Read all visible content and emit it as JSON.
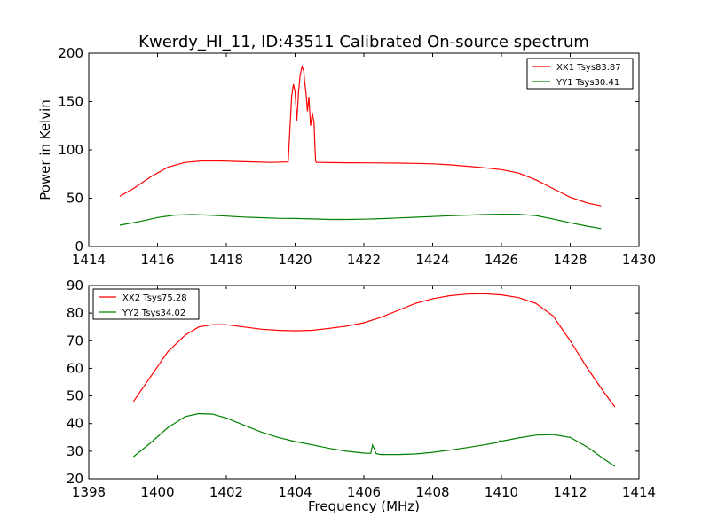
{
  "figure": {
    "title": "Kwerdy_HI_11, ID:43511 Calibrated On-source spectrum",
    "colors": {
      "red": "#ff0000",
      "green": "#008000"
    }
  },
  "chart_data": [
    {
      "type": "line",
      "title": "Kwerdy_HI_11, ID:43511 Calibrated On-source spectrum",
      "xlabel": "",
      "ylabel": "Power in Kelvin",
      "xlim": [
        1414,
        1430
      ],
      "ylim": [
        0,
        200
      ],
      "xticks": [
        1414,
        1416,
        1418,
        1420,
        1422,
        1424,
        1426,
        1428,
        1430
      ],
      "yticks": [
        0,
        50,
        100,
        150,
        200
      ],
      "legend": "upper-right",
      "grid": false,
      "series": [
        {
          "name": "XX1 Tsys83.87",
          "color": "#ff0000",
          "x": [
            1414.9,
            1415.3,
            1415.8,
            1416.3,
            1416.8,
            1417.3,
            1417.8,
            1418.3,
            1418.8,
            1419.3,
            1419.8,
            1419.9,
            1419.95,
            1420.0,
            1420.05,
            1420.1,
            1420.15,
            1420.2,
            1420.25,
            1420.28,
            1420.32,
            1420.36,
            1420.4,
            1420.45,
            1420.5,
            1420.55,
            1420.58,
            1420.6,
            1420.62,
            1420.7,
            1421.0,
            1421.5,
            1422.0,
            1422.5,
            1423.0,
            1423.5,
            1424.0,
            1424.5,
            1425.0,
            1425.5,
            1426.0,
            1426.5,
            1427.0,
            1427.5,
            1428.0,
            1428.5,
            1428.9
          ],
          "y": [
            52,
            60,
            72,
            82,
            87,
            88.5,
            88.5,
            88,
            87.5,
            87,
            87.5,
            155,
            168,
            160,
            130,
            160,
            178,
            186,
            182,
            170,
            158,
            140,
            155,
            125,
            138,
            128,
            100,
            88,
            87,
            87,
            86.8,
            86.6,
            86.5,
            86.4,
            86.2,
            86,
            85.5,
            84.5,
            83,
            81.5,
            79.5,
            76,
            69,
            60,
            51,
            45,
            42
          ]
        },
        {
          "name": "YY1 Tsys30.41",
          "color": "#008000",
          "x": [
            1414.9,
            1415.5,
            1416.0,
            1416.5,
            1417.0,
            1417.5,
            1418.0,
            1418.5,
            1419.0,
            1419.5,
            1420.0,
            1420.5,
            1421.0,
            1421.5,
            1422.0,
            1422.5,
            1423.0,
            1423.5,
            1424.0,
            1424.5,
            1425.0,
            1425.5,
            1426.0,
            1426.5,
            1427.0,
            1427.5,
            1428.0,
            1428.5,
            1428.9
          ],
          "y": [
            22,
            26,
            30,
            32.5,
            33,
            32.5,
            31.5,
            30.5,
            29.8,
            29.2,
            29,
            28.5,
            28,
            28,
            28.3,
            28.8,
            29.5,
            30.3,
            31,
            31.8,
            32.5,
            33,
            33.4,
            33.3,
            32,
            28.5,
            24.5,
            21,
            18.5
          ]
        }
      ]
    },
    {
      "type": "line",
      "title": "",
      "xlabel": "Frequency (MHz)",
      "ylabel": "",
      "xlim": [
        1398,
        1414
      ],
      "ylim": [
        20,
        90
      ],
      "xticks": [
        1398,
        1400,
        1402,
        1404,
        1406,
        1408,
        1410,
        1412,
        1414
      ],
      "yticks": [
        20,
        30,
        40,
        50,
        60,
        70,
        80,
        90
      ],
      "legend": "upper-left",
      "grid": false,
      "series": [
        {
          "name": "XX2 Tsys75.28",
          "color": "#ff0000",
          "x": [
            1399.3,
            1399.8,
            1400.3,
            1400.8,
            1401.2,
            1401.6,
            1402.0,
            1402.5,
            1403.0,
            1403.5,
            1404.0,
            1404.5,
            1405.0,
            1405.5,
            1406.0,
            1406.5,
            1407.0,
            1407.5,
            1408.0,
            1408.5,
            1409.0,
            1409.5,
            1410.0,
            1410.5,
            1411.0,
            1411.5,
            1412.0,
            1412.5,
            1413.0,
            1413.3
          ],
          "y": [
            48,
            57,
            66,
            72,
            75,
            75.8,
            75.8,
            75,
            74.2,
            73.8,
            73.6,
            73.8,
            74.5,
            75.3,
            76.5,
            78.5,
            81,
            83.5,
            85.2,
            86.3,
            86.9,
            87,
            86.6,
            85.6,
            83.5,
            79,
            70,
            60,
            51,
            46
          ]
        },
        {
          "name": "YY2 Tsys34.02",
          "color": "#008000",
          "x": [
            1399.3,
            1399.8,
            1400.3,
            1400.8,
            1401.2,
            1401.6,
            1402.0,
            1402.5,
            1403.0,
            1403.5,
            1404.0,
            1404.5,
            1405.0,
            1405.5,
            1406.0,
            1406.2,
            1406.25,
            1406.3,
            1406.35,
            1406.4,
            1406.5,
            1407.0,
            1407.5,
            1408.0,
            1408.5,
            1409.0,
            1409.5,
            1409.9,
            1409.95,
            1410.0,
            1410.5,
            1411.0,
            1411.5,
            1412.0,
            1412.5,
            1413.0,
            1413.3
          ],
          "y": [
            28,
            33,
            38.5,
            42.5,
            43.6,
            43.4,
            42,
            39.5,
            37,
            35,
            33.5,
            32.3,
            31,
            30,
            29.3,
            29.2,
            32.2,
            31,
            29.2,
            29,
            28.8,
            28.8,
            29,
            29.6,
            30.4,
            31.3,
            32.3,
            33.2,
            33.8,
            33.6,
            34.8,
            35.8,
            36,
            35,
            31.5,
            27,
            24.5
          ]
        }
      ]
    }
  ]
}
